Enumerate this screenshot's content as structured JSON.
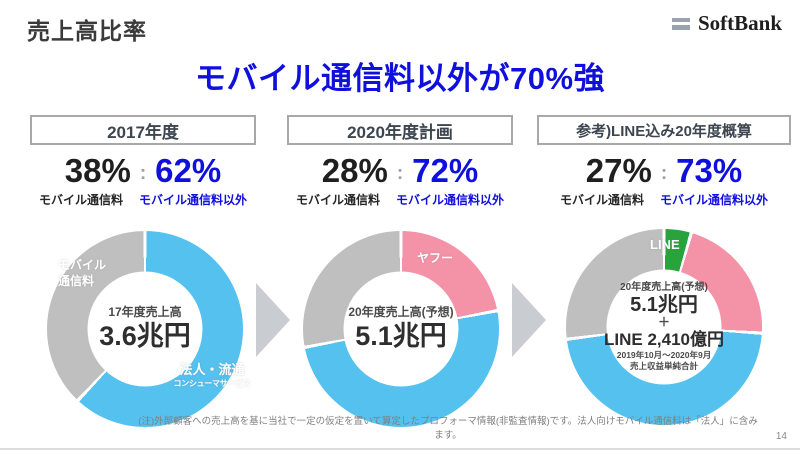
{
  "slide": {
    "title": "売上高比率",
    "headline": "モバイル通信料以外が70%強",
    "logo_text": "SoftBank",
    "footnote": "(注)外部顧客への売上高を基に当社で一定の仮定を置いて算定したプロフォーマ情報(非監査情報)です。法人向けモバイル通信料は「法人」に含みます。",
    "page_number": "14"
  },
  "colors": {
    "accent_blue": "#1010dd",
    "segment_blue": "#55c1ef",
    "segment_gray": "#bfbfbf",
    "segment_pink": "#f492a8",
    "segment_green": "#2ba33c",
    "arrow_gray": "#c9cdd1"
  },
  "columns": [
    {
      "header": "2017年度",
      "mobile_pct": "38%",
      "ratio_sep": ":",
      "other_pct": "62%",
      "mobile_label": "モバイル通信料",
      "other_label": "モバイル通信料以外",
      "center_caption": "17年度売上高",
      "center_value": "3.6兆円",
      "gray_segment_label": "モバイル\n通信料",
      "blue_segment_label_line1": "法人・流通",
      "blue_segment_label_line2": "コンシューマサービス"
    },
    {
      "header": "2020年度計画",
      "mobile_pct": "28%",
      "ratio_sep": ":",
      "other_pct": "72%",
      "mobile_label": "モバイル通信料",
      "other_label": "モバイル通信料以外",
      "center_caption": "20年度売上高(予想)",
      "center_value": "5.1兆円",
      "pink_segment_label": "ヤフー"
    },
    {
      "header": "参考)LINE込み20年度概算",
      "mobile_pct": "27%",
      "ratio_sep": ":",
      "other_pct": "73%",
      "mobile_label": "モバイル通信料",
      "other_label": "モバイル通信料以外",
      "center_caption": "20年度売上高(予想)",
      "center_value": "5.1兆円",
      "center_plus": "＋",
      "center_line_value": "LINE 2,410億円",
      "center_note1": "2019年10月～2020年9月",
      "center_note2": "売上収益単純合計",
      "green_segment_label": "LINE"
    }
  ],
  "chart_data": [
    {
      "type": "pie",
      "title": "2017年度",
      "center_label": "17年度売上高 3.6兆円",
      "segments": [
        {
          "label": "モバイル通信料以外 (法人・流通 コンシューマサービス)",
          "value": 62,
          "color": "#55c1ef"
        },
        {
          "label": "モバイル通信料",
          "value": 38,
          "color": "#bfbfbf"
        }
      ]
    },
    {
      "type": "pie",
      "title": "2020年度計画",
      "center_label": "20年度売上高(予想) 5.1兆円",
      "segments": [
        {
          "label": "ヤフー",
          "value": 22,
          "color": "#f492a8"
        },
        {
          "label": "",
          "value": 50,
          "color": "#55c1ef"
        },
        {
          "label": "モバイル通信料",
          "value": 28,
          "color": "#bfbfbf"
        }
      ]
    },
    {
      "type": "pie",
      "title": "参考)LINE込み20年度概算",
      "center_label": "20年度売上高(予想) 5.1兆円 ＋ LINE 2,410億円 (2019年10月～2020年9月 売上収益単純合計)",
      "segments": [
        {
          "label": "LINE",
          "value": 4.5,
          "color": "#2ba33c"
        },
        {
          "label": "",
          "value": 21.5,
          "color": "#f492a8"
        },
        {
          "label": "",
          "value": 47,
          "color": "#55c1ef"
        },
        {
          "label": "モバイル通信料",
          "value": 27,
          "color": "#bfbfbf"
        }
      ]
    }
  ]
}
